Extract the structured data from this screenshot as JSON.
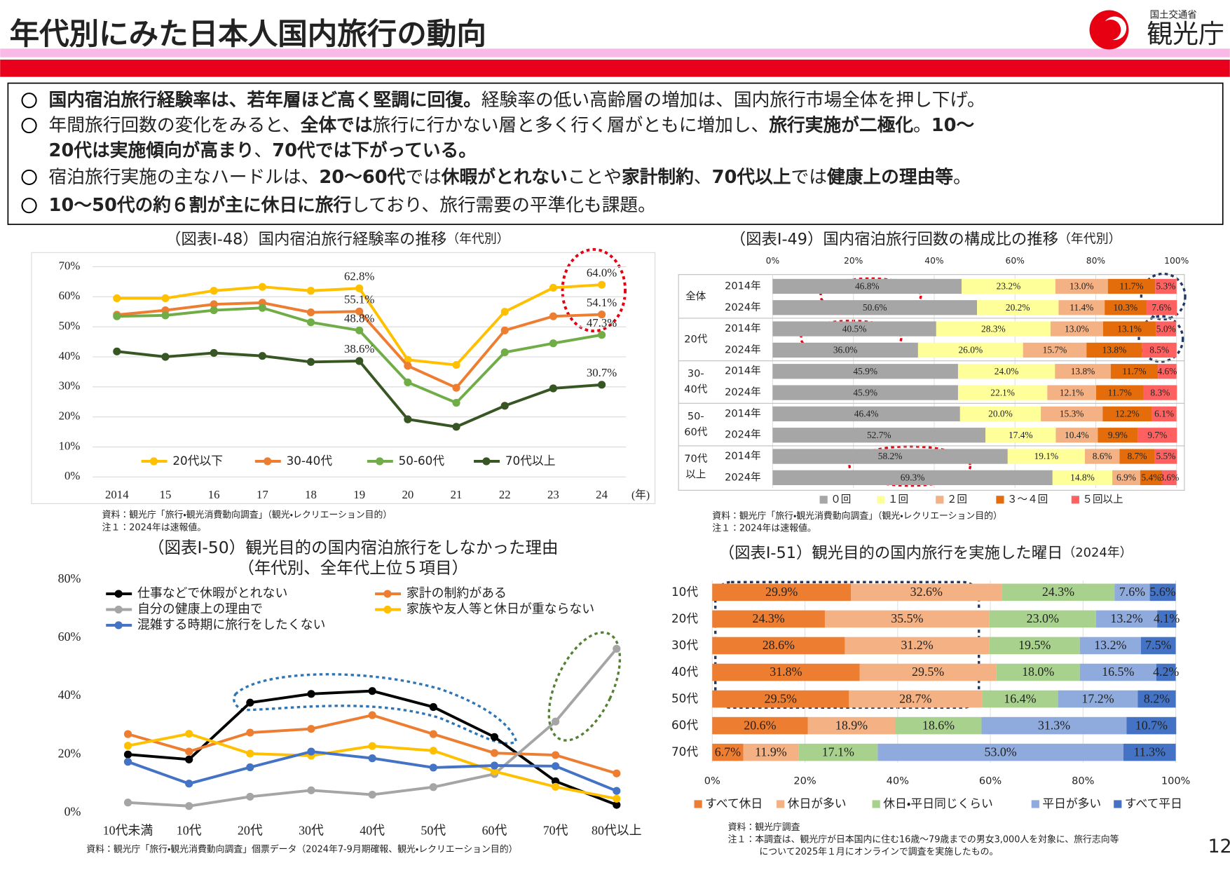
{
  "header": {
    "title": "年代別にみた日本人国内旅行の動向",
    "logo_small": "国土交通省",
    "logo": "観光庁"
  },
  "bullets": [
    [
      [
        {
          "text": "国内宿泊旅行経験率は、若年層ほど高く堅調に回復。",
          "bold": true
        },
        {
          "text": "経験率の低い高齢層の増加は、国内旅行市場全体を押し下げ。",
          "bold": false
        }
      ]
    ],
    [
      [
        {
          "text": "年間旅行回数の変化をみると、",
          "bold": false
        },
        {
          "text": "全体では",
          "bold": true
        },
        {
          "text": "旅行に行かない層と多く行く層がともに増加し、",
          "bold": false
        },
        {
          "text": "旅行実施が二極化",
          "bold": true
        },
        {
          "text": "。",
          "bold": false
        },
        {
          "text": "10～",
          "bold": true
        }
      ],
      [
        {
          "text": "20代は実施傾向が高まり",
          "bold": true
        },
        {
          "text": "、",
          "bold": false
        },
        {
          "text": "70代では下がっている。",
          "bold": true
        }
      ]
    ],
    [
      [
        {
          "text": "宿泊旅行実施の主なハードルは、",
          "bold": false
        },
        {
          "text": "20～60代",
          "bold": true
        },
        {
          "text": "では",
          "bold": false
        },
        {
          "text": "休暇がとれない",
          "bold": true
        },
        {
          "text": "ことや",
          "bold": false
        },
        {
          "text": "家計制約",
          "bold": true
        },
        {
          "text": "、",
          "bold": false
        },
        {
          "text": "70代以上",
          "bold": true
        },
        {
          "text": "では",
          "bold": false
        },
        {
          "text": "健康上の理由等",
          "bold": true
        },
        {
          "text": "。",
          "bold": false
        }
      ]
    ],
    [
      [
        {
          "text": "10～50代の約６割が主に休日に旅行",
          "bold": true
        },
        {
          "text": "しており、旅行需要の平準化も課題。",
          "bold": false
        }
      ]
    ]
  ],
  "page_number": 12,
  "chart_data": [
    {
      "type": "line",
      "title": "（図表Ⅰ-48）国内宿泊旅行経験率の推移",
      "subtitle": "（年代別）",
      "categories": [
        "2014",
        "15",
        "16",
        "17",
        "18",
        "19",
        "20",
        "21",
        "22",
        "23",
        "24"
      ],
      "x_unit": "(年)",
      "ylim": [
        0,
        70
      ],
      "yticks": [
        {
          "value": 0,
          "label": "0%"
        },
        {
          "value": 10,
          "label": "10%"
        },
        {
          "value": 20,
          "label": "20%"
        },
        {
          "value": 30,
          "label": "30%"
        },
        {
          "value": 40,
          "label": "40%"
        },
        {
          "value": 50,
          "label": "50%"
        },
        {
          "value": 60,
          "label": "60%"
        },
        {
          "value": 70,
          "label": "70%"
        }
      ],
      "grid": true,
      "series": [
        {
          "name": "20代以下",
          "color": "#ffc000",
          "values": [
            59.5,
            59.5,
            62,
            63.3,
            62,
            62.8,
            39,
            37.3,
            55,
            63,
            64.0
          ],
          "value_labels": [
            null,
            null,
            null,
            null,
            null,
            "62.8%",
            null,
            null,
            null,
            null,
            "64.0%"
          ]
        },
        {
          "name": "30-40代",
          "color": "#ed7d31",
          "values": [
            54,
            55.5,
            57.5,
            58,
            54.8,
            55.1,
            37,
            29.7,
            48.8,
            53.5,
            54.1
          ],
          "value_labels": [
            null,
            null,
            null,
            null,
            null,
            "55.1%",
            null,
            null,
            null,
            null,
            "54.1%"
          ]
        },
        {
          "name": "50-60代",
          "color": "#70ad47",
          "values": [
            53.5,
            53.8,
            55.5,
            56.3,
            51.5,
            48.8,
            31.5,
            24.7,
            41.5,
            44.5,
            47.3
          ],
          "value_labels": [
            null,
            null,
            null,
            null,
            null,
            "48.8%",
            null,
            null,
            null,
            null,
            "47.3%"
          ]
        },
        {
          "name": "70代以上",
          "color": "#375623",
          "values": [
            41.8,
            40,
            41.3,
            40.3,
            38.3,
            38.6,
            19.2,
            16.7,
            23.7,
            29.5,
            30.7
          ],
          "value_labels": [
            null,
            null,
            null,
            null,
            null,
            "38.6%",
            null,
            null,
            null,
            null,
            "30.7%"
          ]
        }
      ],
      "notes": [
        "資料：観光庁「旅行・観光消費動向調査」（観光・レクリエーション目的）",
        "注１：2024年は速報値。"
      ]
    },
    {
      "type": "bar",
      "orientation": "horizontal",
      "stacked": true,
      "title": "（図表Ⅰ-49）国内宿泊旅行回数の構成比の推移",
      "subtitle": "（年代別）",
      "categories": [
        "2014年",
        "2024年",
        "2014年",
        "2024年",
        "2014年",
        "2024年",
        "2014年",
        "2024年",
        "2014年",
        "2024年"
      ],
      "group_labels": [
        [
          "全体"
        ],
        [
          "20代"
        ],
        [
          "30-",
          "40代"
        ],
        [
          "50-",
          "60代"
        ],
        [
          "70代",
          "以上"
        ]
      ],
      "xlim": [
        0,
        100
      ],
      "xticks": [
        {
          "value": 0,
          "label": "0%"
        },
        {
          "value": 20,
          "label": "20%"
        },
        {
          "value": 40,
          "label": "40%"
        },
        {
          "value": 60,
          "label": "60%"
        },
        {
          "value": 80,
          "label": "80%"
        },
        {
          "value": 100,
          "label": "100%"
        }
      ],
      "grid": true,
      "series": [
        {
          "name": "０回",
          "color": "#a6a6a6",
          "values": [
            46.8,
            50.6,
            40.5,
            36.0,
            45.9,
            45.9,
            46.4,
            52.7,
            58.2,
            69.3
          ],
          "value_labels": [
            "46.8%",
            "50.6%",
            "40.5%",
            "36.0%",
            "45.9%",
            "45.9%",
            "46.4%",
            "52.7%",
            "58.2%",
            "69.3%"
          ]
        },
        {
          "name": "１回",
          "color": "#ffff99",
          "values": [
            23.2,
            20.2,
            28.3,
            26.0,
            24.0,
            22.1,
            20.0,
            17.4,
            19.1,
            14.8
          ],
          "value_labels": [
            "23.2%",
            "20.2%",
            "28.3%",
            "26.0%",
            "24.0%",
            "22.1%",
            "20.0%",
            "17.4%",
            "19.1%",
            "14.8%"
          ]
        },
        {
          "name": "２回",
          "color": "#f4b183",
          "values": [
            13.0,
            11.4,
            13.0,
            15.7,
            13.8,
            12.1,
            15.3,
            10.4,
            8.6,
            6.9
          ],
          "value_labels": [
            "13.0%",
            "11.4%",
            "13.0%",
            "15.7%",
            "13.8%",
            "12.1%",
            "15.3%",
            "10.4%",
            "8.6%",
            "6.9%"
          ]
        },
        {
          "name": "３～４回",
          "color": "#e46c0a",
          "values": [
            11.7,
            10.3,
            13.1,
            13.8,
            11.7,
            11.7,
            12.2,
            9.9,
            8.7,
            5.4
          ],
          "value_labels": [
            "11.7%",
            "10.3%",
            "13.1%",
            "13.8%",
            "11.7%",
            "11.7%",
            "12.2%",
            "9.9%",
            "8.7%",
            "5.4%"
          ]
        },
        {
          "name": "５回以上",
          "color": "#ff6161",
          "values": [
            5.3,
            7.6,
            5.0,
            8.5,
            4.6,
            8.3,
            6.1,
            9.7,
            5.5,
            3.6
          ],
          "value_labels": [
            "5.3%",
            "7.6%",
            "5.0%",
            "8.5%",
            "4.6%",
            "8.3%",
            "6.1%",
            "9.7%",
            "5.5%",
            "3.6%"
          ]
        }
      ],
      "notes": [
        "資料：観光庁「旅行・観光消費動向調査」（観光・レクリエーション目的）",
        "注１：2024年は速報値。"
      ]
    },
    {
      "type": "line",
      "title": "（図表Ⅰ-50）観光目的の国内宿泊旅行をしなかった理由",
      "subtitle": "（年代別、全年代上位５項目）",
      "categories": [
        "10代未満",
        "10代",
        "20代",
        "30代",
        "40代",
        "50代",
        "60代",
        "70代",
        "80代以上"
      ],
      "ylim": [
        0,
        80
      ],
      "yticks": [
        {
          "value": 0,
          "label": "0%"
        },
        {
          "value": 20,
          "label": "20%"
        },
        {
          "value": 40,
          "label": "40%"
        },
        {
          "value": 60,
          "label": "60%"
        },
        {
          "value": 80,
          "label": "80%"
        }
      ],
      "grid": false,
      "series": [
        {
          "name": "仕事などで休暇がとれない",
          "color": "#000000",
          "values": [
            20,
            18.3,
            37.8,
            40.8,
            41.8,
            36.3,
            26,
            10.8,
            2.7
          ]
        },
        {
          "name": "家計の制約がある",
          "color": "#ed7d31",
          "values": [
            27,
            21,
            27.5,
            28.8,
            33.5,
            27,
            20.5,
            19.8,
            13.5
          ]
        },
        {
          "name": "自分の健康上の理由で",
          "color": "#a5a5a5",
          "values": [
            3.5,
            2.3,
            5.5,
            7.7,
            6.2,
            8.8,
            13.3,
            31.3,
            56.3
          ]
        },
        {
          "name": "家族や友人等と休日が重ならない",
          "color": "#ffc000",
          "values": [
            23,
            27.1,
            20.3,
            19.6,
            22.9,
            21.3,
            14.2,
            8.9,
            4.8
          ]
        },
        {
          "name": "混雑する時期に旅行をしたくない",
          "color": "#4472c4",
          "values": [
            17.5,
            10,
            15.6,
            21,
            18.7,
            15.5,
            16.2,
            16,
            7.5
          ]
        }
      ],
      "notes": [
        "資料：観光庁「旅行・観光消費動向調査」個票データ（2024年7-9月期確報、観光・レクリエーション目的）"
      ]
    },
    {
      "type": "bar",
      "orientation": "horizontal",
      "stacked": true,
      "title": "（図表Ⅰ-51）観光目的の国内旅行を実施した曜日",
      "subtitle": "（2024年）",
      "categories": [
        "10代",
        "20代",
        "30代",
        "40代",
        "50代",
        "60代",
        "70代"
      ],
      "xlim": [
        0,
        100
      ],
      "xticks": [
        {
          "value": 0,
          "label": "0%"
        },
        {
          "value": 20,
          "label": "20%"
        },
        {
          "value": 40,
          "label": "40%"
        },
        {
          "value": 60,
          "label": "60%"
        },
        {
          "value": 80,
          "label": "80%"
        },
        {
          "value": 100,
          "label": "100%"
        }
      ],
      "grid": true,
      "series": [
        {
          "name": "すべて休日",
          "color": "#ed7d31",
          "values": [
            29.9,
            24.3,
            28.6,
            31.8,
            29.5,
            20.6,
            6.7
          ],
          "value_labels": [
            "29.9%",
            "24.3%",
            "28.6%",
            "31.8%",
            "29.5%",
            "20.6%",
            "6.7%"
          ]
        },
        {
          "name": "休日が多い",
          "color": "#f4b183",
          "values": [
            32.6,
            35.5,
            31.2,
            29.5,
            28.7,
            18.9,
            11.9
          ],
          "value_labels": [
            "32.6%",
            "35.5%",
            "31.2%",
            "29.5%",
            "28.7%",
            "18.9%",
            "11.9%"
          ]
        },
        {
          "name": "休日・平日同じくらい",
          "color": "#a9d18e",
          "values": [
            24.3,
            23.0,
            19.5,
            18.0,
            16.4,
            18.6,
            17.1
          ],
          "value_labels": [
            "24.3%",
            "23.0%",
            "19.5%",
            "18.0%",
            "16.4%",
            "18.6%",
            "17.1%"
          ]
        },
        {
          "name": "平日が多い",
          "color": "#8faadc",
          "values": [
            7.6,
            13.2,
            13.2,
            16.5,
            17.2,
            31.3,
            53.0
          ],
          "value_labels": [
            "7.6%",
            "13.2%",
            "13.2%",
            "16.5%",
            "17.2%",
            "31.3%",
            "53.0%"
          ]
        },
        {
          "name": "すべて平日",
          "color": "#4472c4",
          "values": [
            5.6,
            4.1,
            7.5,
            4.2,
            8.2,
            10.7,
            11.3
          ],
          "value_labels": [
            "5.6%",
            "4.1%",
            "7.5%",
            "4.2%",
            "8.2%",
            "10.7%",
            "11.3%"
          ]
        }
      ],
      "notes": [
        "資料：観光庁調査",
        "注１：本調査は、観光庁が日本国内に住む16歳～79歳までの男女3,000人を対象に、旅行志向等",
        "について2025年１月にオンラインで調査を実施したもの。"
      ]
    }
  ]
}
